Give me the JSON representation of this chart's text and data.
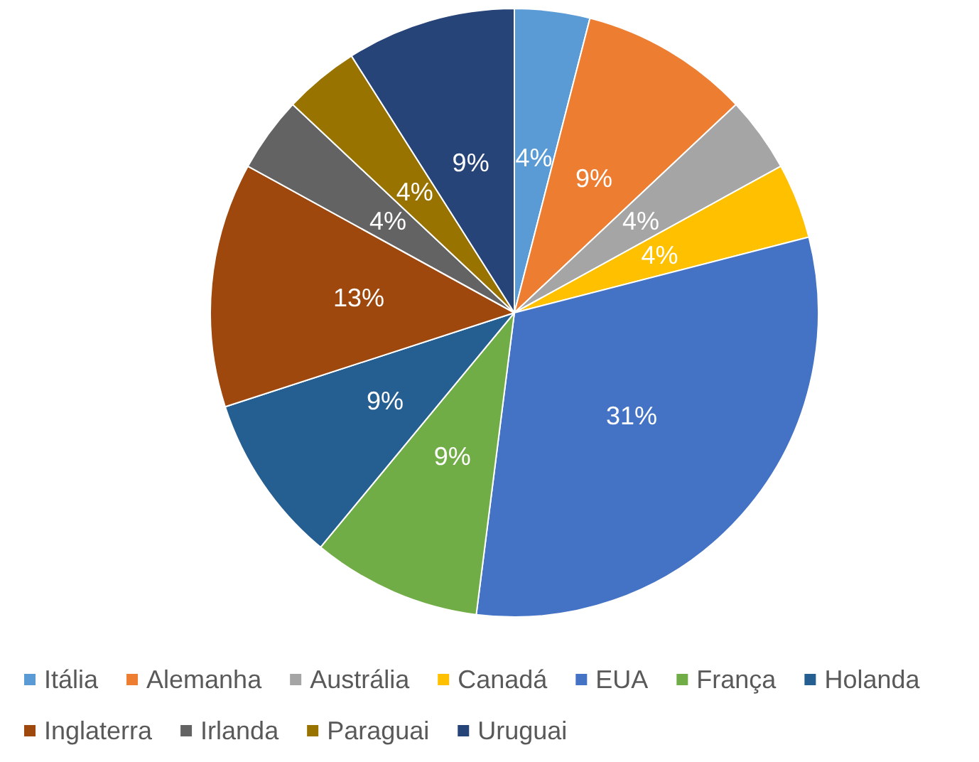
{
  "chart_data": {
    "type": "pie",
    "categories": [
      "Itália",
      "Alemanha",
      "Austrália",
      "Canadá",
      "EUA",
      "França",
      "Holanda",
      "Inglaterra",
      "Irlanda",
      "Paraguai",
      "Uruguai"
    ],
    "values": [
      4,
      9,
      4,
      4,
      31,
      9,
      9,
      13,
      4,
      4,
      9
    ],
    "value_labels": [
      "4%",
      "9%",
      "4%",
      "4%",
      "31%",
      "9%",
      "9%",
      "13%",
      "4%",
      "4%",
      "9%"
    ],
    "colors": [
      "#5b9bd5",
      "#ed7d31",
      "#a5a5a5",
      "#ffc000",
      "#4472c4",
      "#70ad47",
      "#255e91",
      "#9e480e",
      "#636363",
      "#997300",
      "#264478"
    ],
    "legend": "bottom"
  }
}
